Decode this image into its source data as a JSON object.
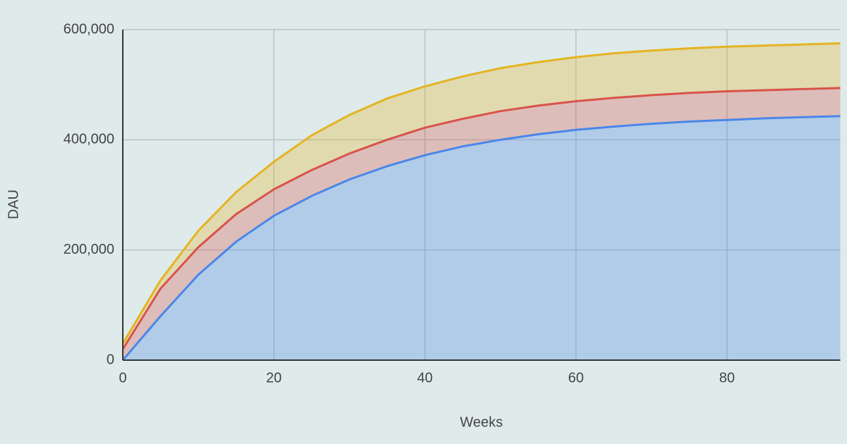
{
  "chart_data": {
    "type": "stacked-area",
    "x_label": "Weeks",
    "y_label": "DAU",
    "x": [
      0,
      5,
      10,
      15,
      20,
      25,
      30,
      35,
      40,
      45,
      50,
      55,
      60,
      65,
      70,
      75,
      80,
      85,
      90,
      95
    ],
    "series": [
      {
        "color": "#4a86e8",
        "values": [
          0,
          80000,
          155000,
          215000,
          262000,
          298000,
          328000,
          352000,
          372000,
          388000,
          400000,
          410000,
          418000,
          424000,
          429000,
          433000,
          436000,
          439000,
          441000,
          443000
        ]
      },
      {
        "color": "#d9524a",
        "values": [
          20000,
          50000,
          50000,
          50000,
          48000,
          47000,
          47000,
          48000,
          50000,
          50000,
          52000,
          52000,
          52000,
          52000,
          52000,
          52000,
          52000,
          51000,
          51000,
          51000
        ]
      },
      {
        "color": "#e5b323",
        "values": [
          10000,
          15000,
          30000,
          40000,
          50000,
          63000,
          70000,
          75000,
          75000,
          77000,
          78000,
          79000,
          80000,
          81000,
          81000,
          81000,
          81000,
          81000,
          81000,
          81000
        ]
      }
    ],
    "xlim": [
      0,
      95
    ],
    "xticks": [
      0,
      20,
      40,
      60,
      80
    ],
    "ylim": [
      0,
      600000
    ],
    "yticks": [
      0,
      {
        "value": 200000,
        "label": "200,000"
      },
      {
        "value": 400000,
        "label": "400,000"
      },
      {
        "value": 600000,
        "label": "600,000"
      }
    ],
    "grid": true
  }
}
